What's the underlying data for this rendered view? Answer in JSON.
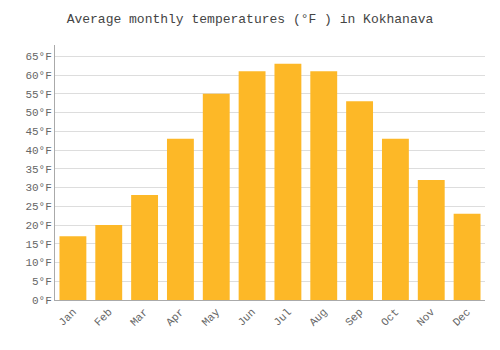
{
  "chart_data": {
    "type": "bar",
    "title": "Average monthly temperatures (°F ) in Kokhanava",
    "categories": [
      "Jan",
      "Feb",
      "Mar",
      "Apr",
      "May",
      "Jun",
      "Jul",
      "Aug",
      "Sep",
      "Oct",
      "Nov",
      "Dec"
    ],
    "values": [
      17,
      20,
      28,
      43,
      55,
      61,
      63,
      61,
      53,
      43,
      32,
      23
    ],
    "color": "#FDB827",
    "ylim": [
      0,
      68
    ],
    "yticks": [
      {
        "value": 0,
        "label": "0°F"
      },
      {
        "value": 5,
        "label": "5°F"
      },
      {
        "value": 10,
        "label": "10°F"
      },
      {
        "value": 15,
        "label": "15°F"
      },
      {
        "value": 20,
        "label": "20°F"
      },
      {
        "value": 25,
        "label": "25°F"
      },
      {
        "value": 30,
        "label": "30°F"
      },
      {
        "value": 35,
        "label": "35°F"
      },
      {
        "value": 40,
        "label": "40°F"
      },
      {
        "value": 45,
        "label": "45°F"
      },
      {
        "value": 50,
        "label": "50°F"
      },
      {
        "value": 55,
        "label": "55°F"
      },
      {
        "value": 60,
        "label": "60°F"
      },
      {
        "value": 65,
        "label": "65°F"
      }
    ],
    "grid": true
  }
}
